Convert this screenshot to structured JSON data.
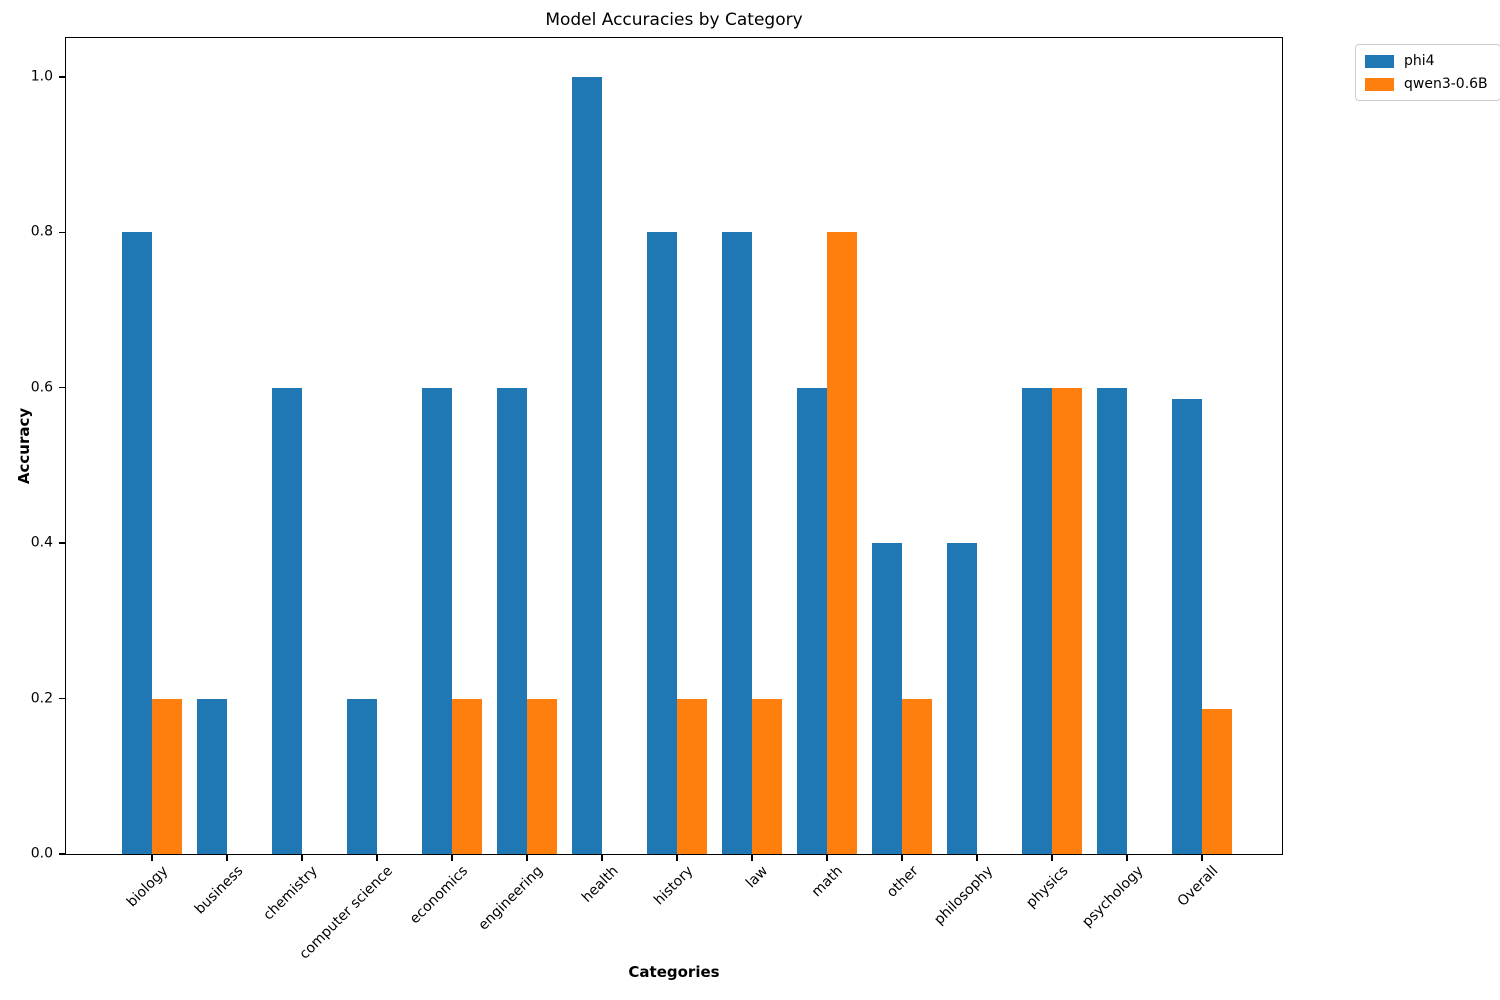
{
  "chart_data": {
    "type": "bar",
    "title": "Model Accuracies by Category",
    "xlabel": "Categories",
    "ylabel": "Accuracy",
    "categories": [
      "biology",
      "business",
      "chemistry",
      "computer science",
      "economics",
      "engineering",
      "health",
      "history",
      "law",
      "math",
      "other",
      "philosophy",
      "physics",
      "psychology",
      "Overall"
    ],
    "series": [
      {
        "name": "phi4",
        "color": "#1f77b4",
        "values": [
          0.8,
          0.2,
          0.6,
          0.2,
          0.6,
          0.6,
          1.0,
          0.8,
          0.8,
          0.6,
          0.4,
          0.4,
          0.6,
          0.6,
          0.586
        ]
      },
      {
        "name": "qwen3-0.6B",
        "color": "#ff7f0e",
        "values": [
          0.2,
          0.0,
          0.0,
          0.0,
          0.2,
          0.2,
          0.0,
          0.2,
          0.2,
          0.8,
          0.2,
          0.0,
          0.6,
          0.0,
          0.186
        ]
      }
    ],
    "ylim": [
      0,
      1.05
    ],
    "yticks": [
      "0.0",
      "0.2",
      "0.4",
      "0.6",
      "0.8",
      "1.0"
    ],
    "grid": false,
    "legend_position": "outside-upper-right",
    "bar_layout": "grouped"
  }
}
